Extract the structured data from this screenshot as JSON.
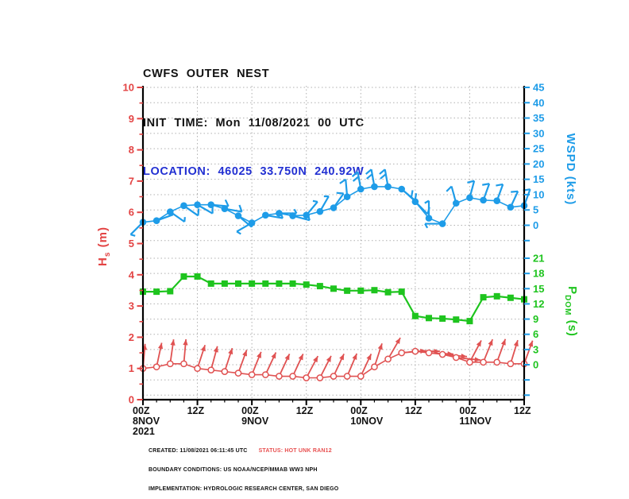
{
  "title": {
    "line1": "CWFS OUTER NEST",
    "line2": "INIT TIME: Mon 11/08/2021 00 UTC",
    "line3": "LOCATION: 46025 33.750N 240.92W"
  },
  "axes": {
    "hs": {
      "label_h": "H",
      "label_sub": "s",
      "label_unit": " (m)",
      "ticks": [
        0,
        1,
        2,
        3,
        4,
        5,
        6,
        7,
        8,
        9,
        10
      ],
      "color": "#e34444"
    },
    "wspd": {
      "label": "WSPD (kts)",
      "ticks": [
        0,
        5,
        10,
        15,
        20,
        25,
        30,
        35,
        40,
        45
      ],
      "color": "#1e9ce8"
    },
    "pdom": {
      "label_p": "P",
      "label_sub": "DOM",
      "label_unit": " (s)",
      "ticks": [
        0,
        3,
        6,
        9,
        12,
        15,
        18,
        21
      ],
      "color": "#1ec41e"
    },
    "x": {
      "major_hours": [
        0,
        12,
        24,
        36,
        48,
        60,
        72,
        84
      ],
      "major_labels": [
        [
          "00Z",
          "8NOV",
          "2021"
        ],
        [
          "12Z"
        ],
        [
          "00Z",
          "9NOV"
        ],
        [
          "12Z"
        ],
        [
          "00Z",
          "10NOV"
        ],
        [
          "12Z"
        ],
        [
          "00Z",
          "11NOV"
        ],
        [
          "12Z"
        ]
      ]
    }
  },
  "chart_data": {
    "type": "line",
    "title": "CWFS OUTER NEST point forecast",
    "x_hours": [
      0,
      3,
      6,
      9,
      12,
      15,
      18,
      21,
      24,
      27,
      30,
      33,
      36,
      39,
      42,
      45,
      48,
      51,
      54,
      57,
      60,
      63,
      66,
      69,
      72,
      75,
      78,
      81,
      84
    ],
    "series": [
      {
        "name": "WSPD",
        "unit": "kts",
        "color": "#1e9ce8",
        "marker": "dot-with-wind-barb",
        "values": [
          1.0,
          1.5,
          4.4,
          6.4,
          6.7,
          6.7,
          5.4,
          3.1,
          0.8,
          3.3,
          3.9,
          3.1,
          3.3,
          4.5,
          5.7,
          9.3,
          11.8,
          12.6,
          12.6,
          11.8,
          7.7,
          2.3,
          0.5,
          7.2,
          9.0,
          8.2,
          8.0,
          5.9,
          6.4
        ],
        "barb_angles_deg": [
          -135,
          20,
          -35,
          -35,
          -30,
          -5,
          -10,
          -40,
          -150,
          -10,
          0,
          -15,
          50,
          60,
          55,
          95,
          100,
          100,
          100,
          -40,
          -45,
          90,
          180,
          105,
          75,
          70,
          70,
          65,
          70
        ],
        "ylim": [
          0,
          45
        ]
      },
      {
        "name": "PDOM",
        "unit": "s",
        "color": "#1ec41e",
        "marker": "square",
        "values": [
          14.4,
          14.4,
          14.5,
          17.4,
          17.4,
          16,
          16,
          16,
          16,
          16,
          16,
          16,
          15.8,
          15.5,
          15,
          14.6,
          14.6,
          14.7,
          14.3,
          14.4,
          9.6,
          9.2,
          9.1,
          8.9,
          8.6,
          13.3,
          13.5,
          13.2,
          12.9
        ],
        "ylim": [
          0,
          21
        ]
      },
      {
        "name": "HS",
        "unit": "m",
        "color": "#e05252",
        "marker": "open-circle-with-direction-arrow",
        "values": [
          1.0,
          1.05,
          1.15,
          1.15,
          1.0,
          0.95,
          0.9,
          0.85,
          0.8,
          0.8,
          0.75,
          0.75,
          0.7,
          0.7,
          0.75,
          0.75,
          0.75,
          1.05,
          1.3,
          1.5,
          1.55,
          1.5,
          1.45,
          1.35,
          1.2,
          1.2,
          1.2,
          1.15,
          1.15
        ],
        "arrow_angles_deg": [
          85,
          78,
          82,
          85,
          72,
          75,
          72,
          70,
          68,
          65,
          65,
          65,
          62,
          63,
          65,
          67,
          65,
          72,
          60,
          5,
          0,
          -3,
          -5,
          -6,
          62,
          68,
          70,
          73,
          70
        ],
        "ylim": [
          0,
          10
        ]
      }
    ],
    "grid": "dotted",
    "x_axis_labels": [
      "00Z 8NOV 2021",
      "12Z",
      "00Z 9NOV",
      "12Z",
      "00Z 10NOV",
      "12Z",
      "00Z 11NOV",
      "12Z"
    ]
  },
  "footer": {
    "created": "CREATED: 11/08/2021 06:11:45 UTC",
    "status": "STATUS: HOT UNK RAN12",
    "boundary": "BOUNDARY CONDITIONS: US NOAA/NCEP/MMAB WW3 NPH",
    "implementation": "IMPLEMENTATION: HYDROLOGIC RESEARCH CENTER, SAN DIEGO"
  },
  "colors": {
    "hs_red": "#e34444",
    "wspd_blue": "#1e9ce8",
    "pdom_green": "#1ec41e",
    "location_blue": "#2230d2",
    "status_red": "#e85050",
    "grid_gray": "#b0b0b0",
    "text": "#111111"
  }
}
